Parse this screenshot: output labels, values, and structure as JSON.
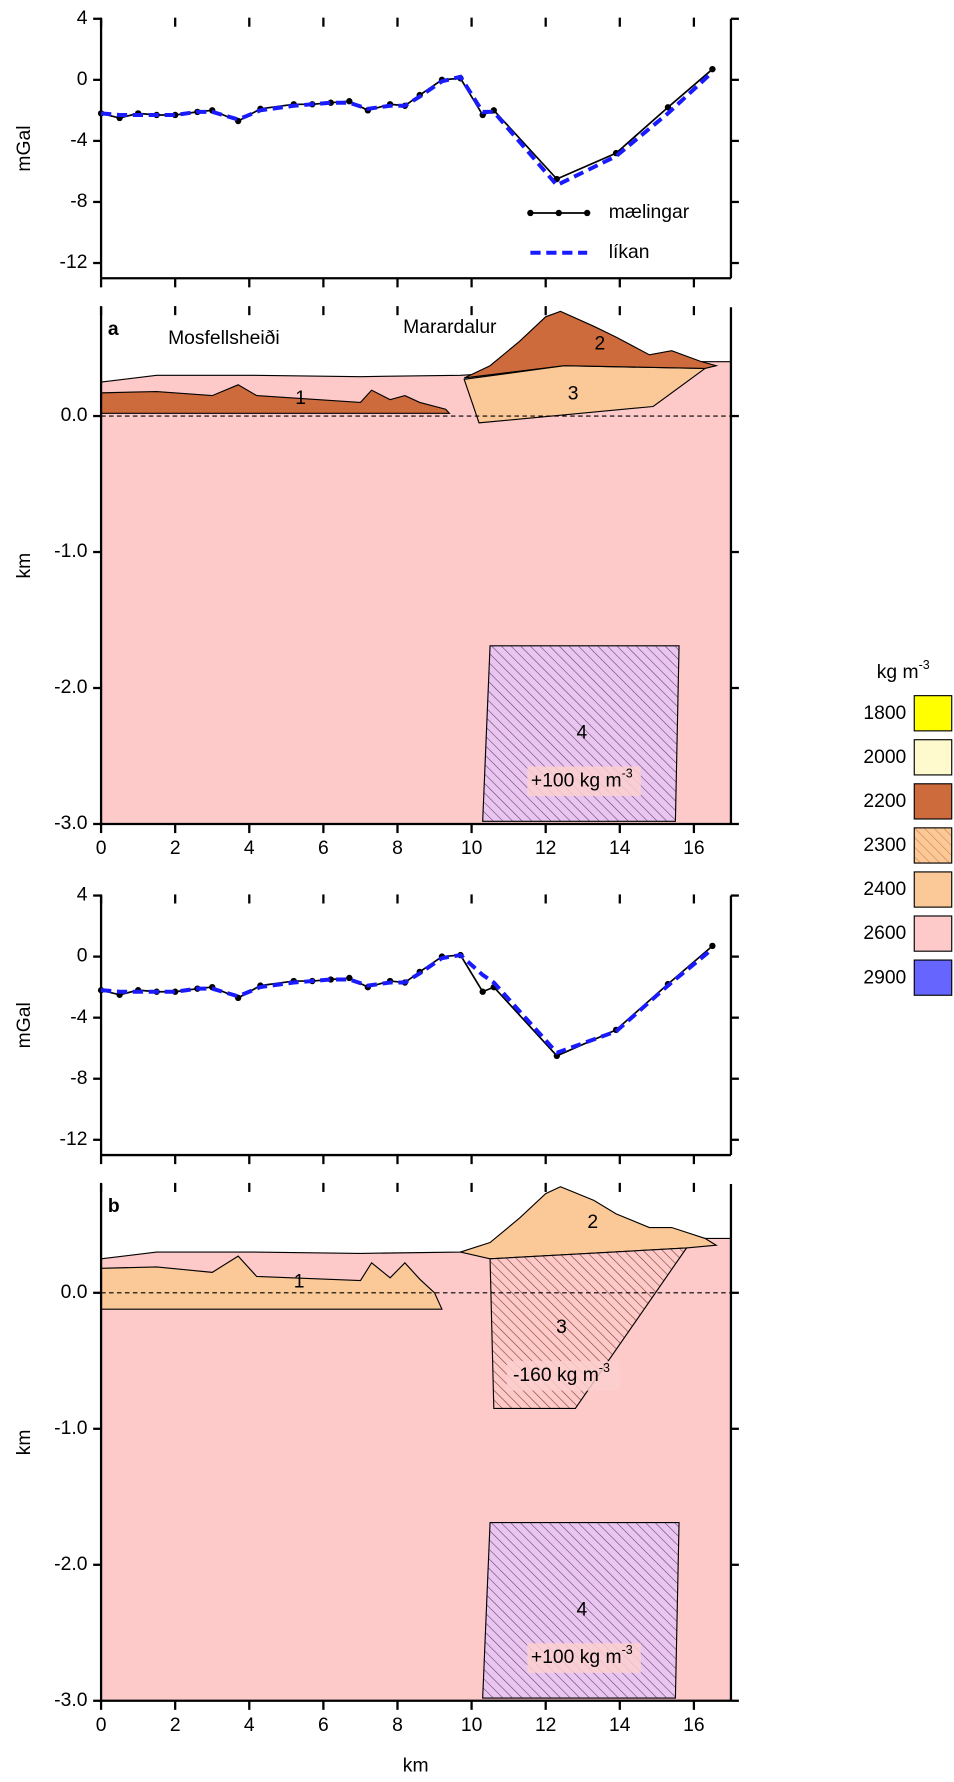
{
  "chart_data": [
    {
      "type": "line",
      "ylabel": "mGal",
      "xlim": [
        0,
        17
      ],
      "xticks": [
        0,
        2,
        4,
        6,
        8,
        10,
        12,
        14,
        16
      ],
      "ylim": [
        -13,
        4
      ],
      "yticks": [
        -12,
        -8,
        -4,
        0,
        4
      ],
      "x": [
        0,
        0.5,
        1.0,
        1.5,
        2.0,
        2.6,
        3.0,
        3.7,
        4.3,
        5.2,
        5.7,
        6.2,
        6.7,
        7.2,
        7.8,
        8.2,
        8.6,
        9.2,
        9.7,
        10.3,
        10.6,
        12.3,
        13.9,
        15.3,
        16.5
      ],
      "series": [
        {
          "name": "mælingar",
          "color": "#000000",
          "marker": true,
          "values": [
            -2.2,
            -2.5,
            -2.2,
            -2.3,
            -2.3,
            -2.1,
            -2.0,
            -2.7,
            -1.9,
            -1.6,
            -1.6,
            -1.5,
            -1.4,
            -2.0,
            -1.6,
            -1.7,
            -1.0,
            0.0,
            0.1,
            -2.3,
            -2.0,
            -6.5,
            -4.8,
            -1.8,
            0.7
          ]
        },
        {
          "name": "líkan",
          "color": "#1a1aff",
          "dashed": true,
          "values": [
            -2.2,
            -2.3,
            -2.3,
            -2.3,
            -2.3,
            -2.1,
            -2.1,
            -2.6,
            -2.0,
            -1.7,
            -1.6,
            -1.5,
            -1.5,
            -1.9,
            -1.7,
            -1.7,
            -1.1,
            -0.1,
            0.2,
            -2.1,
            -2.1,
            -6.9,
            -5.0,
            -2.2,
            0.5
          ]
        }
      ],
      "legend": true
    },
    {
      "type": "section",
      "panel": "a",
      "ylabel": "km",
      "xlim": [
        0,
        17
      ],
      "xticks": [
        0,
        2,
        4,
        6,
        8,
        10,
        12,
        14,
        16
      ],
      "ylim": [
        -3,
        0.8
      ],
      "yticks": [
        {
          "value": 0,
          "label": "0.0"
        },
        {
          "value": -1,
          "label": "-1.0"
        },
        {
          "value": -2,
          "label": "-2.0"
        },
        {
          "value": -3,
          "label": "-3.0"
        }
      ],
      "annotations": [
        "Mosfellsheiði",
        "Marardalur"
      ],
      "bodies": [
        {
          "color": "#fdc9c9",
          "x": [
            0,
            1.5,
            4,
            7,
            9.7,
            16.2,
            17,
            17,
            0
          ],
          "y": [
            0.25,
            0.3,
            0.3,
            0.29,
            0.3,
            0.4,
            0.4,
            -3,
            -3
          ]
        },
        {
          "label": "1",
          "color": "#cd6b3c",
          "x": [
            0,
            1.5,
            3,
            3.7,
            4.2,
            7,
            7.3,
            7.8,
            8.2,
            8.6,
            9.3,
            9.4,
            0
          ],
          "y": [
            0.17,
            0.18,
            0.15,
            0.23,
            0.15,
            0.1,
            0.19,
            0.12,
            0.15,
            0.1,
            0.05,
            0.02,
            0.02
          ]
        },
        {
          "label": "3",
          "color": "#fbc898",
          "x": [
            9.8,
            12.5,
            16.3,
            14.9,
            10.2
          ],
          "y": [
            0.27,
            0.37,
            0.35,
            0.07,
            -0.05
          ]
        },
        {
          "label": "2",
          "color": "#cd6b3c",
          "x": [
            9.8,
            10.5,
            11.3,
            12,
            12.4,
            13.3,
            13.9,
            14.8,
            15.4,
            16.2,
            16.6,
            16.3,
            12.5
          ],
          "y": [
            0.28,
            0.37,
            0.55,
            0.73,
            0.77,
            0.66,
            0.58,
            0.45,
            0.48,
            0.4,
            0.37,
            0.35,
            0.37
          ]
        },
        {
          "label": "4",
          "color": "#e8c6ee",
          "hatch": "#6a3a7a",
          "x": [
            10.5,
            15.6,
            15.5,
            10.3
          ],
          "y": [
            -1.69,
            -1.69,
            -2.98,
            -2.98
          ],
          "annotation": {
            "text": "+100 kg m",
            "sup": "-3"
          }
        }
      ]
    },
    {
      "type": "line",
      "ylabel": "mGal",
      "xlim": [
        0,
        17
      ],
      "xticks": [
        0,
        2,
        4,
        6,
        8,
        10,
        12,
        14,
        16
      ],
      "ylim": [
        -13,
        4
      ],
      "yticks": [
        -12,
        -8,
        -4,
        0,
        4
      ],
      "x": [
        0,
        0.5,
        1.0,
        1.5,
        2.0,
        2.6,
        3.0,
        3.7,
        4.3,
        5.2,
        5.7,
        6.2,
        6.7,
        7.2,
        7.8,
        8.2,
        8.6,
        9.2,
        9.7,
        10.3,
        10.6,
        12.3,
        13.9,
        15.3,
        16.5
      ],
      "series": [
        {
          "color": "#000000",
          "marker": true,
          "values": [
            -2.2,
            -2.5,
            -2.2,
            -2.3,
            -2.3,
            -2.1,
            -2.0,
            -2.7,
            -1.9,
            -1.6,
            -1.6,
            -1.5,
            -1.4,
            -2.0,
            -1.6,
            -1.7,
            -1.0,
            0.0,
            0.1,
            -2.3,
            -2.0,
            -6.5,
            -4.8,
            -1.8,
            0.7
          ]
        },
        {
          "color": "#1a1aff",
          "dashed": true,
          "values": [
            -2.2,
            -2.3,
            -2.3,
            -2.3,
            -2.3,
            -2.1,
            -2.1,
            -2.6,
            -2.0,
            -1.7,
            -1.6,
            -1.5,
            -1.5,
            -1.9,
            -1.7,
            -1.7,
            -1.1,
            -0.1,
            0.1,
            -1.2,
            -1.7,
            -6.3,
            -4.9,
            -1.9,
            0.5
          ]
        }
      ]
    },
    {
      "type": "section",
      "panel": "b",
      "ylabel": "km",
      "xlabel": "km",
      "xlim": [
        0,
        17
      ],
      "xticks": [
        0,
        2,
        4,
        6,
        8,
        10,
        12,
        14,
        16
      ],
      "ylim": [
        -3,
        0.8
      ],
      "yticks": [
        {
          "value": 0,
          "label": "0.0"
        },
        {
          "value": -1,
          "label": "-1.0"
        },
        {
          "value": -2,
          "label": "-2.0"
        },
        {
          "value": -3,
          "label": "-3.0"
        }
      ],
      "bodies": [
        {
          "color": "#fdc9c9",
          "x": [
            0,
            1.5,
            4,
            7,
            9.7,
            16.2,
            17,
            17,
            0
          ],
          "y": [
            0.25,
            0.3,
            0.3,
            0.29,
            0.3,
            0.4,
            0.4,
            -3,
            -3
          ]
        },
        {
          "label": "1",
          "color": "#fbc898",
          "x": [
            0,
            1.5,
            3,
            3.7,
            4.2,
            7,
            7.3,
            7.8,
            8.2,
            8.6,
            9.0,
            9.2,
            0
          ],
          "y": [
            0.18,
            0.19,
            0.15,
            0.27,
            0.12,
            0.09,
            0.22,
            0.11,
            0.22,
            0.1,
            0.0,
            -0.12,
            -0.12
          ]
        },
        {
          "label": "2",
          "color": "#fbc898",
          "x": [
            9.7,
            10.5,
            11.3,
            12,
            12.4,
            13.3,
            13.9,
            14.8,
            15.4,
            16.3,
            16.6,
            15.8,
            10.5
          ],
          "y": [
            0.3,
            0.37,
            0.55,
            0.73,
            0.78,
            0.68,
            0.58,
            0.48,
            0.48,
            0.4,
            0.35,
            0.33,
            0.25
          ]
        },
        {
          "label": "3",
          "color": "#fdc9c9",
          "hatch": "#7a3a2a",
          "x": [
            10.5,
            15.8,
            12.8,
            10.6
          ],
          "y": [
            0.25,
            0.33,
            -0.85,
            -0.85
          ],
          "annotation": {
            "text": "-160 kg m",
            "sup": "-3"
          }
        },
        {
          "label": "4",
          "color": "#e8c6ee",
          "hatch": "#6a3a7a",
          "x": [
            10.5,
            15.6,
            15.5,
            10.3
          ],
          "y": [
            -1.69,
            -1.69,
            -2.98,
            -2.98
          ],
          "annotation": {
            "text": "+100 kg m",
            "sup": "-3"
          }
        }
      ]
    }
  ],
  "legend": {
    "title": "kg m",
    "title_sup": "-3",
    "entries": [
      {
        "label": "1800",
        "color": "#ffff00"
      },
      {
        "label": "2000",
        "color": "#fffacd"
      },
      {
        "label": "2200",
        "color": "#cd6b3c"
      },
      {
        "label": "2300",
        "color": "#fbc898",
        "hatch": "#d08040"
      },
      {
        "label": "2400",
        "color": "#fbc898"
      },
      {
        "label": "2600",
        "color": "#fdc9c9"
      },
      {
        "label": "2900",
        "color": "#6666ff"
      }
    ]
  }
}
